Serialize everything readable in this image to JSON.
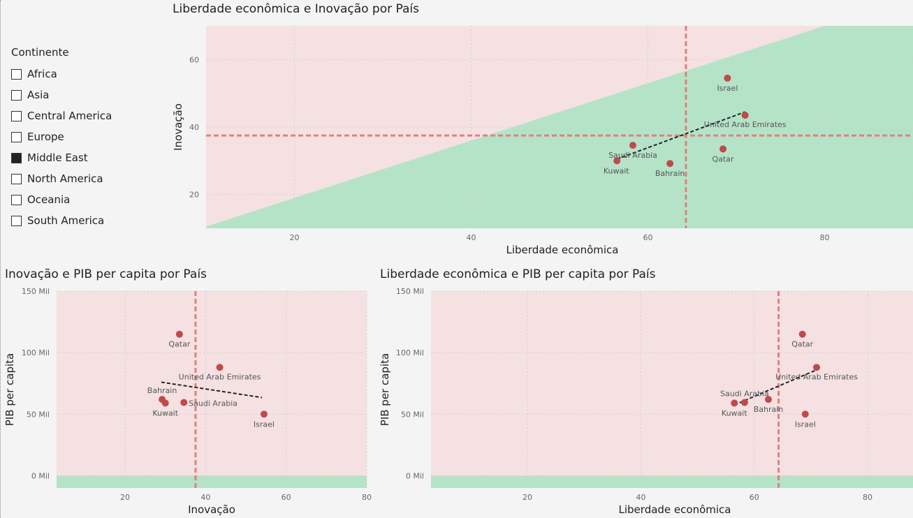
{
  "slicer": {
    "title": "Continente",
    "items": [
      {
        "label": "Africa",
        "checked": false
      },
      {
        "label": "Asia",
        "checked": false
      },
      {
        "label": "Central America",
        "checked": false
      },
      {
        "label": "Europe",
        "checked": false
      },
      {
        "label": "Middle East",
        "checked": true
      },
      {
        "label": "North America",
        "checked": false
      },
      {
        "label": "Oceania",
        "checked": false
      },
      {
        "label": "South America",
        "checked": false
      }
    ]
  },
  "colors": {
    "above": "#f5e1e2",
    "below": "#b5e3c8",
    "point": "#c0494a",
    "avg_line": "#e08080",
    "trend": "#222222"
  },
  "chart_data": [
    {
      "type": "scatter",
      "title": "Liberdade econômica e Inovação por País",
      "xlabel": "Liberdade econômica",
      "ylabel": "Inovação",
      "xlim": [
        10,
        90
      ],
      "ylim": [
        10,
        70
      ],
      "xticks": [
        20,
        40,
        60,
        80
      ],
      "yticks": [
        20,
        40,
        60
      ],
      "xtick_labels": [
        "20",
        "40",
        "60",
        "80"
      ],
      "ytick_labels": [
        "20",
        "40",
        "60"
      ],
      "grid": true,
      "x_average": 64.3,
      "y_average": 37.5,
      "shading": {
        "type": "diagonal",
        "points": [
          [
            10,
            10.5
          ],
          [
            80,
            70
          ]
        ]
      },
      "trend": [
        [
          56.5,
          30.5
        ],
        [
          71,
          44.5
        ]
      ],
      "points": [
        {
          "label": "Israel",
          "x": 69,
          "y": 54.5,
          "label_pos": "below"
        },
        {
          "label": "United Arab Emirates",
          "x": 71,
          "y": 43.5,
          "label_pos": "below"
        },
        {
          "label": "Saudi Arabia",
          "x": 58.3,
          "y": 34.6,
          "label_pos": "below"
        },
        {
          "label": "Kuwait",
          "x": 56.5,
          "y": 30,
          "label_pos": "below-left"
        },
        {
          "label": "Bahrain",
          "x": 62.5,
          "y": 29.2,
          "label_pos": "below"
        },
        {
          "label": "Qatar",
          "x": 68.5,
          "y": 33.5,
          "label_pos": "below"
        }
      ]
    },
    {
      "type": "scatter",
      "title": "Inovação e PIB per capita por País",
      "xlabel": "Inovação",
      "ylabel": "PIB per capita",
      "xlim": [
        3,
        80
      ],
      "ylim": [
        -10000,
        150000
      ],
      "xticks": [
        20,
        40,
        60,
        80
      ],
      "yticks": [
        0,
        50000,
        100000,
        150000
      ],
      "xtick_labels": [
        "20",
        "40",
        "60",
        "80"
      ],
      "ytick_labels": [
        "0 Mil",
        "50 Mil",
        "100 Mil",
        "150 Mil"
      ],
      "grid": true,
      "x_average": 37.5,
      "y_average": 0,
      "shading": {
        "type": "horizontal",
        "y": 0
      },
      "trend": [
        [
          29,
          76000
        ],
        [
          54,
          63500
        ]
      ],
      "points": [
        {
          "label": "Qatar",
          "x": 33.5,
          "y": 115000,
          "label_pos": "below"
        },
        {
          "label": "United Arab Emirates",
          "x": 43.5,
          "y": 88000,
          "label_pos": "below"
        },
        {
          "label": "Bahrain",
          "x": 29.2,
          "y": 62000,
          "label_pos": "above"
        },
        {
          "label": "Kuwait",
          "x": 30,
          "y": 59000,
          "label_pos": "below"
        },
        {
          "label": "Saudi Arabia",
          "x": 34.6,
          "y": 59500,
          "label_pos": "right"
        },
        {
          "label": "Israel",
          "x": 54.5,
          "y": 50000,
          "label_pos": "below"
        }
      ]
    },
    {
      "type": "scatter",
      "title": "Liberdade econômica e PIB per capita por País",
      "xlabel": "Liberdade econômica",
      "ylabel": "PIB per capita",
      "xlim": [
        3,
        88
      ],
      "ylim": [
        -10000,
        150000
      ],
      "xticks": [
        20,
        40,
        60,
        80
      ],
      "yticks": [
        0,
        50000,
        100000,
        150000
      ],
      "xtick_labels": [
        "20",
        "40",
        "60",
        "80"
      ],
      "ytick_labels": [
        "0 Mil",
        "50 Mil",
        "100 Mil",
        "150 Mil"
      ],
      "grid": true,
      "x_average": 64.3,
      "y_average": 0,
      "shading": {
        "type": "horizontal",
        "y": 0
      },
      "trend": [
        [
          56.5,
          57500
        ],
        [
          71,
          86000
        ]
      ],
      "points": [
        {
          "label": "Qatar",
          "x": 68.5,
          "y": 115000,
          "label_pos": "below"
        },
        {
          "label": "United Arab Emirates",
          "x": 71,
          "y": 88000,
          "label_pos": "below"
        },
        {
          "label": "Saudi Arabia",
          "x": 58.3,
          "y": 59500,
          "label_pos": "above"
        },
        {
          "label": "Kuwait",
          "x": 56.5,
          "y": 59000,
          "label_pos": "below"
        },
        {
          "label": "Bahrain",
          "x": 62.5,
          "y": 62000,
          "label_pos": "below"
        },
        {
          "label": "Israel",
          "x": 69,
          "y": 50000,
          "label_pos": "below"
        }
      ]
    }
  ]
}
